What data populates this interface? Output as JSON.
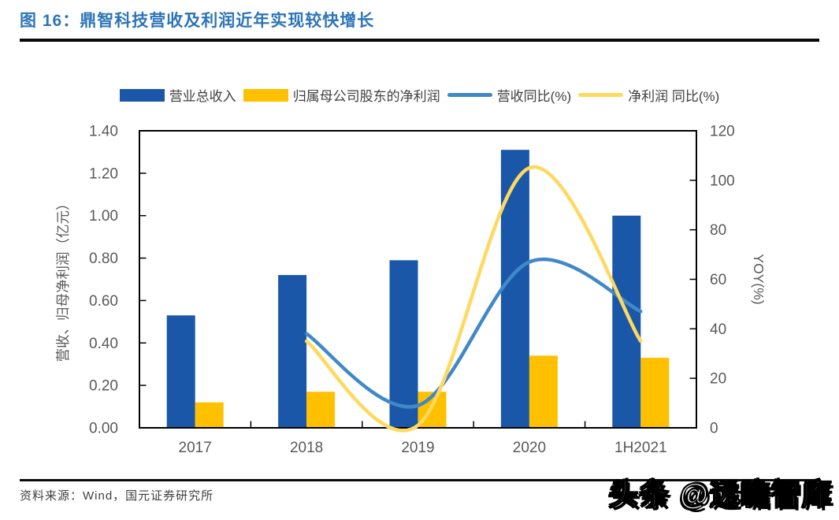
{
  "header": {
    "title": "图 16：鼎智科技营收及利润近年实现较快增长"
  },
  "legend": {
    "items": [
      {
        "label": "营业总收入",
        "type": "bar"
      },
      {
        "label": "归属母公司股东的净利润",
        "type": "bar"
      },
      {
        "label": "营收同比(%)",
        "type": "line"
      },
      {
        "label": "净利润 同比(%)",
        "type": "line"
      }
    ]
  },
  "chart_data": {
    "type": "bar+line combo",
    "categories": [
      "2017",
      "2018",
      "2019",
      "2020",
      "1H2021"
    ],
    "series": [
      {
        "name": "营业总收入",
        "kind": "bar",
        "axis": "left",
        "color": "#1B57A9",
        "values": [
          0.53,
          0.72,
          0.79,
          1.31,
          1.0
        ]
      },
      {
        "name": "归属母公司股东的净利润",
        "kind": "bar",
        "axis": "left",
        "color": "#FFC000",
        "values": [
          0.12,
          0.17,
          0.17,
          0.34,
          0.33
        ]
      },
      {
        "name": "营收同比(%)",
        "kind": "line",
        "axis": "right",
        "color": "#4089C7",
        "values": [
          null,
          38,
          9,
          67,
          47
        ]
      },
      {
        "name": "净利润 同比(%)",
        "kind": "line",
        "axis": "right",
        "color": "#FFD95E",
        "values": [
          null,
          35,
          1,
          105,
          35
        ]
      }
    ],
    "left_axis": {
      "title": "营收、归母净利润（亿元）",
      "min": 0,
      "max": 1.4,
      "tick_labels": [
        "0.00",
        "0.20",
        "0.40",
        "0.60",
        "0.80",
        "1.00",
        "1.20",
        "1.40"
      ]
    },
    "right_axis": {
      "title": "YOY(%)",
      "min": 0,
      "max": 120,
      "tick_labels": [
        "0",
        "20",
        "40",
        "60",
        "80",
        "100",
        "120"
      ]
    },
    "legend_position": "top",
    "grid": false,
    "axis_text_color": "#595959",
    "frame_color": "#000000"
  },
  "footer": {
    "source": "资料来源：Wind，国元证券研究所",
    "watermark": "头条 @远瞻智库"
  }
}
